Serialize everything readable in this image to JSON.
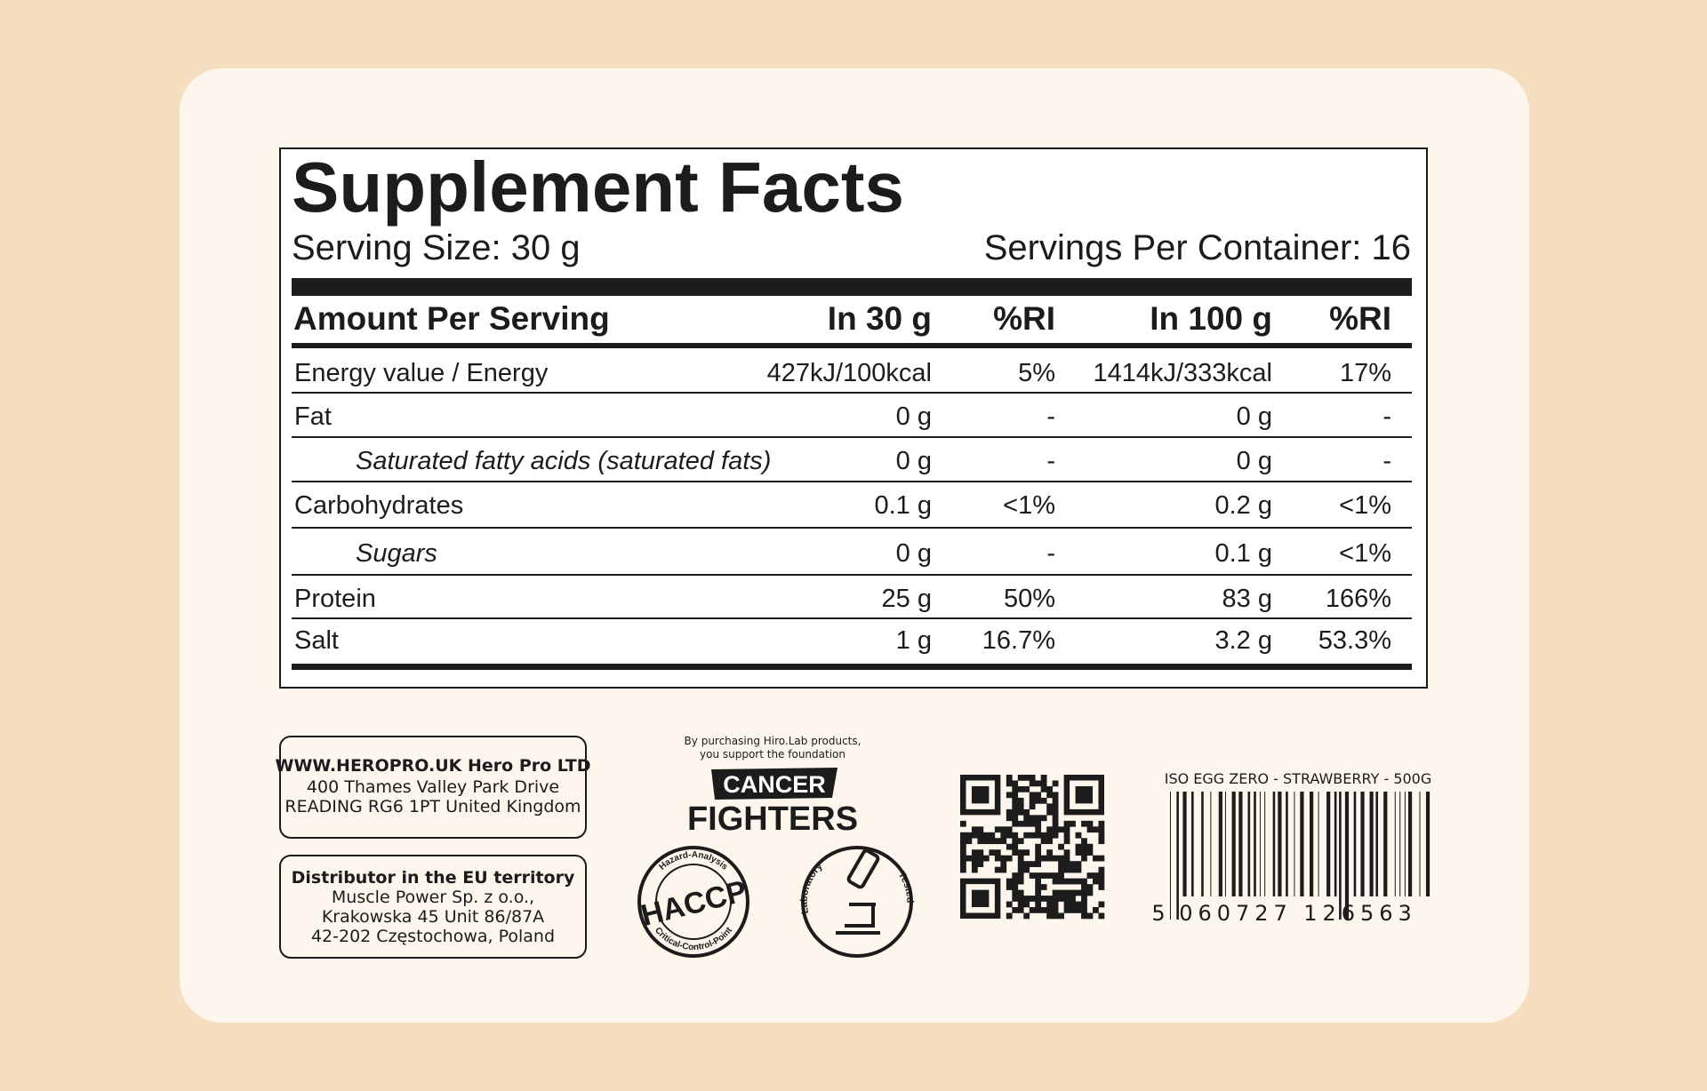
{
  "header": {
    "title": "Supplement Facts",
    "serving_size": "Serving Size: 30 g",
    "servings_per_container": "Servings Per Container: 16"
  },
  "table": {
    "columns": [
      "Amount Per Serving",
      "In 30 g",
      "%RI",
      "In 100 g",
      "%RI"
    ],
    "rows": [
      {
        "name": "Energy value / Energy",
        "in_30g": "427kJ/100kcal",
        "ri_30g": "5%",
        "in_100g": "1414kJ/333kcal",
        "ri_100g": "17%"
      },
      {
        "name": "Fat",
        "in_30g": "0 g",
        "ri_30g": "-",
        "in_100g": "0 g",
        "ri_100g": "-"
      },
      {
        "name": "Saturated fatty acids (saturated fats)",
        "in_30g": "0 g",
        "ri_30g": "-",
        "in_100g": "0 g",
        "ri_100g": "-",
        "italic": true
      },
      {
        "name": "Carbohydrates",
        "in_30g": "0.1 g",
        "ri_30g": "<1%",
        "in_100g": "0.2 g",
        "ri_100g": "<1%"
      },
      {
        "name": "Sugars",
        "in_30g": "0 g",
        "ri_30g": "-",
        "in_100g": "0.1 g",
        "ri_100g": "<1%",
        "italic": true
      },
      {
        "name": "Protein",
        "in_30g": "25 g",
        "ri_30g": "50%",
        "in_100g": "83 g",
        "ri_100g": "166%"
      },
      {
        "name": "Salt",
        "in_30g": "1 g",
        "ri_30g": "16.7%",
        "in_100g": "3.2 g",
        "ri_100g": "53.3%"
      }
    ]
  },
  "company": {
    "line_1": "WWW.HEROPRO.UK Hero Pro LTD",
    "line_2": "400 Thames Valley Park Drive",
    "line_3": "READING RG6 1PT United Kingdom"
  },
  "distributor": {
    "line_1": "Distributor in the EU territory",
    "line_2": "Muscle Power Sp. z o.o.,",
    "line_3": "Krakowska 45 Unit 86/87A",
    "line_4": "42-202 Częstochowa, Poland"
  },
  "foundation": {
    "note_1": "By purchasing Hiro.Lab products,",
    "note_2": "you support the foundation",
    "logo_1": "CANCER",
    "logo_2": "FIGHTERS"
  },
  "haccp": {
    "label": "HACCP",
    "top": "Hazard-Analysis",
    "bottom": "Critical-Control-Point"
  },
  "lab": {
    "left": "Laboratory",
    "right": "Tested"
  },
  "barcode": {
    "product": "ISO EGG ZERO - STRAWBERRY - 500G",
    "digits": [
      "5",
      "060727",
      "126563"
    ]
  }
}
